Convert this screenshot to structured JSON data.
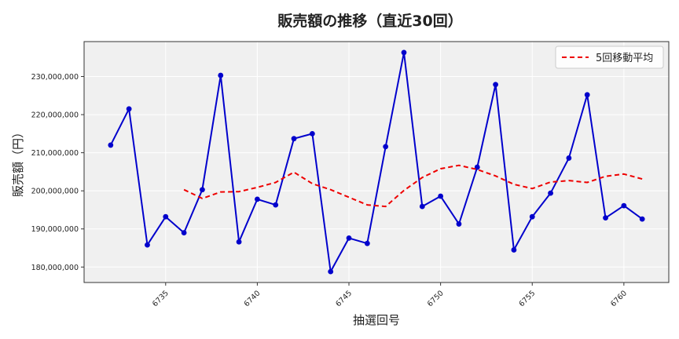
{
  "chart_data": {
    "type": "line",
    "title": "販売額の推移（直近30回）",
    "xlabel": "抽選回号",
    "ylabel": "販売額（円）",
    "x": [
      6732,
      6733,
      6734,
      6735,
      6736,
      6737,
      6738,
      6739,
      6740,
      6741,
      6742,
      6743,
      6744,
      6745,
      6746,
      6747,
      6748,
      6749,
      6750,
      6751,
      6752,
      6753,
      6754,
      6755,
      6756,
      6757,
      6758,
      6759,
      6760,
      6761
    ],
    "series": [
      {
        "name": "",
        "color": "#0000cc",
        "style": "solid-markers",
        "values": [
          212000000,
          221500000,
          185800000,
          193200000,
          189000000,
          200300000,
          230300000,
          186600000,
          197800000,
          196300000,
          213700000,
          215000000,
          178800000,
          187600000,
          186200000,
          211600000,
          236300000,
          195900000,
          198600000,
          191300000,
          206200000,
          227900000,
          184500000,
          193200000,
          199400000,
          208600000,
          225200000,
          192900000,
          196100000,
          192600000
        ]
      },
      {
        "name": "5回移動平均",
        "color": "#ee0000",
        "style": "dashed",
        "values": [
          null,
          null,
          null,
          null,
          200300000,
          198000000,
          199700000,
          199800000,
          200900000,
          202200000,
          204900000,
          201900000,
          200300000,
          198300000,
          196300000,
          195900000,
          200100000,
          203500000,
          205800000,
          206700000,
          205600000,
          203900000,
          201700000,
          200600000,
          202300000,
          202700000,
          202200000,
          203800000,
          204400000,
          203100000
        ]
      }
    ],
    "xticks": [
      6735,
      6740,
      6745,
      6750,
      6755,
      6760
    ],
    "yticks": [
      180000000,
      190000000,
      200000000,
      210000000,
      220000000,
      230000000
    ],
    "ytick_labels": [
      "180,000,000",
      "190,000,000",
      "200,000,000",
      "210,000,000",
      "220,000,000",
      "230,000,000"
    ],
    "xlim": [
      6730.55,
      6762.45
    ],
    "ylim": [
      175940000,
      239170000
    ],
    "grid": true,
    "legend": "top-right",
    "plot_background": "#f0f0f0"
  }
}
